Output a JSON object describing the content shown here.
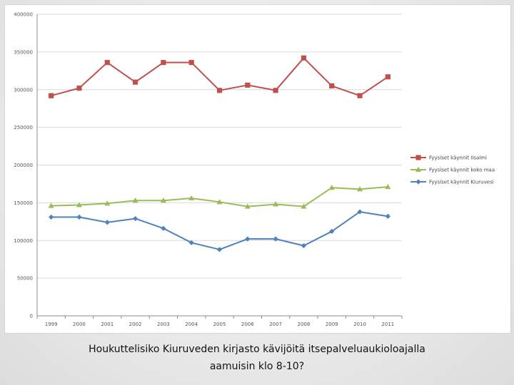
{
  "chart_data": {
    "type": "line",
    "title": "",
    "xlabel": "",
    "ylabel": "",
    "ylim": [
      0,
      400000
    ],
    "yticks": [
      0,
      50000,
      100000,
      150000,
      200000,
      250000,
      300000,
      350000,
      400000
    ],
    "ytick_labels": [
      "0",
      "50000",
      "100000",
      "150000",
      "200000",
      "250000",
      "300000",
      "350000",
      "400000"
    ],
    "categories": [
      "1999",
      "2000",
      "2001",
      "2002",
      "2003",
      "2004",
      "2005",
      "2006",
      "2007",
      "2008",
      "2009",
      "2010",
      "2011"
    ],
    "grid": true,
    "legend_position": "right",
    "series": [
      {
        "name": "Fyysiset käynnit Iisalmi",
        "color": "#c0504d",
        "marker": "square",
        "values": [
          292000,
          302000,
          336000,
          310000,
          336000,
          336000,
          299000,
          306000,
          299000,
          342000,
          305000,
          292000,
          317000
        ]
      },
      {
        "name": "Fyysiset käynnit koko maa",
        "color": "#9bbb59",
        "marker": "triangle",
        "values": [
          146000,
          147000,
          149000,
          153000,
          153000,
          156000,
          151000,
          145000,
          148000,
          145000,
          170000,
          168000,
          171000
        ]
      },
      {
        "name": "Fyysiset käynnit Kiuruvesi",
        "color": "#4f81bd",
        "marker": "diamond",
        "values": [
          131000,
          131000,
          124000,
          129000,
          116000,
          97000,
          88000,
          102000,
          102000,
          93000,
          112000,
          138000,
          132000
        ]
      }
    ]
  },
  "caption": {
    "line1": "Houkuttelisiko Kiuruveden kirjasto kävijöitä itsepalveluaukioloajalla",
    "line2": "aamuisin klo 8-10?"
  }
}
